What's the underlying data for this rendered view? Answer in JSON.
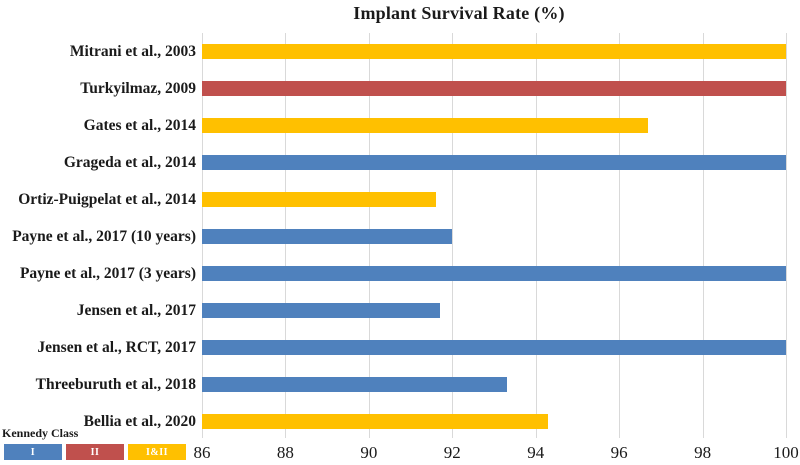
{
  "chart_data": {
    "type": "bar",
    "orientation": "horizontal",
    "title": "Implant Survival Rate (%)",
    "categories": [
      "Mitrani et al., 2003",
      "Turkyilmaz, 2009",
      "Gates et al., 2014",
      "Grageda et al., 2014",
      "Ortiz-Puigpelat et al., 2014",
      "Payne et al., 2017 (10 years)",
      "Payne et al., 2017 (3 years)",
      "Jensen et al., 2017",
      "Jensen et al., RCT, 2017",
      "Threeburuth et al., 2018",
      "Bellia et al., 2020"
    ],
    "values": [
      100,
      100,
      96.7,
      100,
      91.6,
      92,
      100,
      91.7,
      100,
      93.3,
      94.3
    ],
    "groups": [
      "I&II",
      "II",
      "I&II",
      "I",
      "I&II",
      "I",
      "I",
      "I",
      "I",
      "I",
      "I&II"
    ],
    "xlim": [
      86,
      100
    ],
    "xticks": [
      86,
      88,
      90,
      92,
      94,
      96,
      98,
      100
    ],
    "grid": "vertical",
    "gridline_color": "#d9d9d9",
    "legend": {
      "title": "Kennedy Class",
      "position": "bottom-left",
      "entries": [
        {
          "label": "I",
          "color": "#4F81BD"
        },
        {
          "label": "II",
          "color": "#C0504D"
        },
        {
          "label": "I&II",
          "color": "#FFC000"
        }
      ]
    }
  },
  "colors": {
    "I": "#4F81BD",
    "II": "#C0504D",
    "I&II": "#FFC000",
    "text": "#1a1a1a",
    "legend_label": "#ffffff"
  }
}
